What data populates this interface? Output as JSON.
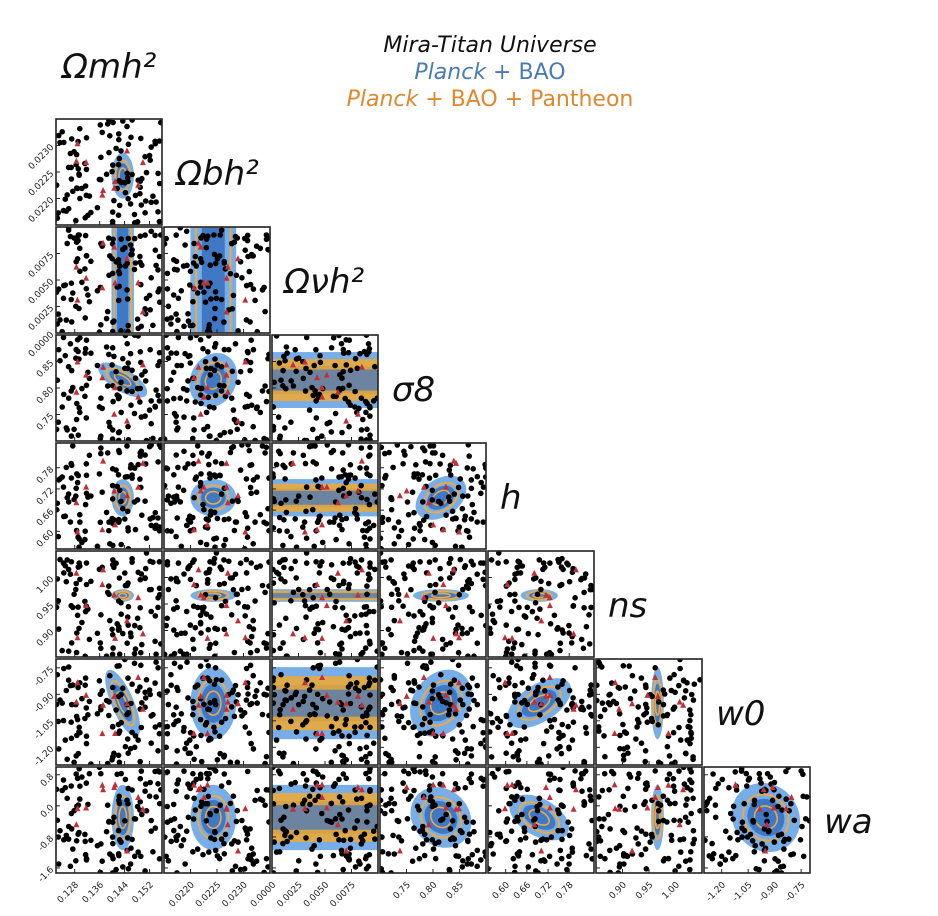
{
  "title": {
    "line1": "Mira-Titan Universe",
    "line2_italic": "Planck",
    "line2_rest": " + BAO",
    "line3_italic": "Planck",
    "line3_rest": " + BAO + Pantheon"
  },
  "colors": {
    "planck_bao_fill_outer": "#78aee8",
    "planck_bao_fill_inner": "#3f78c4",
    "pantheon_contour": "#e8a948",
    "pantheon_fill": "#f0a930",
    "design_points": "#000000",
    "fiducial_markers": "#c0303a"
  },
  "chart_data": {
    "type": "scatter",
    "description_layout": "triangle",
    "parameters": [
      {
        "key": "omch2",
        "label": "Ωmh²",
        "range": [
          0.122,
          0.156
        ],
        "ticks": [
          "0.128",
          "0.136",
          "0.144",
          "0.152"
        ]
      },
      {
        "key": "ombh2",
        "label": "Ωbh²",
        "range": [
          0.0215,
          0.0235
        ],
        "ticks": [
          "0.0220",
          "0.0225",
          "0.0230"
        ]
      },
      {
        "key": "onuh2",
        "label": "Ωνh²",
        "range": [
          0.0,
          0.01
        ],
        "ticks": [
          "0.0000",
          "0.0025",
          "0.0050",
          "0.0075"
        ]
      },
      {
        "key": "sigma8",
        "label": "σ8",
        "range": [
          0.7,
          0.9
        ],
        "ticks": [
          "0.75",
          "0.80",
          "0.85"
        ]
      },
      {
        "key": "h",
        "label": "h",
        "range": [
          0.55,
          0.85
        ],
        "ticks": [
          "0.60",
          "0.66",
          "0.72",
          "0.78"
        ]
      },
      {
        "key": "ns",
        "label": "ns",
        "range": [
          0.85,
          1.05
        ],
        "ticks": [
          "0.90",
          "0.95",
          "1.00"
        ]
      },
      {
        "key": "w0",
        "label": "w0",
        "range": [
          -1.3,
          -0.7
        ],
        "ticks": [
          "-1.20",
          "-1.05",
          "-0.90",
          "-0.75"
        ]
      },
      {
        "key": "wa",
        "label": "wa",
        "range": [
          -1.73,
          1.0
        ],
        "ticks": [
          "-1.6",
          "-0.8",
          "0.0",
          "0.8"
        ]
      }
    ],
    "row_ticks": [
      {
        "param": "ombh2",
        "ticks": [
          "0.0220",
          "0.0225",
          "0.0230"
        ]
      },
      {
        "param": "onuh2",
        "ticks": [
          "0.0000",
          "0.0025",
          "0.0050",
          "0.0075"
        ]
      },
      {
        "param": "sigma8",
        "ticks": [
          "0.75",
          "0.80",
          "0.85"
        ]
      },
      {
        "param": "h",
        "ticks": [
          "0.60",
          "0.66",
          "0.72",
          "0.78"
        ]
      },
      {
        "param": "ns",
        "ticks": [
          "0.90",
          "0.95",
          "1.00"
        ]
      },
      {
        "param": "w0",
        "ticks": [
          "-1.20",
          "-1.05",
          "-0.90",
          "-0.75"
        ]
      },
      {
        "param": "wa",
        "ticks": [
          "-1.6",
          "-0.8",
          "0.0",
          "0.8"
        ]
      }
    ],
    "posterior_centers": {
      "omch2": 0.1434,
      "ombh2": 0.02243,
      "onuh2": 0.0,
      "sigma8": 0.815,
      "h": 0.695,
      "ns": 0.966,
      "w0": -0.95,
      "wa": -0.3
    },
    "posterior_widths": {
      "omch2": 0.0015,
      "ombh2": 0.00018,
      "onuh2": 0.01,
      "sigma8": 0.022,
      "h": 0.022,
      "ns": 0.005,
      "w0": 0.085,
      "wa": 0.35
    },
    "series": [
      {
        "name": "Planck + BAO",
        "kind": "filled-contours",
        "confidence_levels": [
          "68%",
          "95%"
        ]
      },
      {
        "name": "Planck + BAO + Pantheon",
        "kind": "line-contours",
        "confidence_levels": [
          "68%",
          "95%"
        ]
      },
      {
        "kind": "scatter",
        "count": 111
      },
      {
        "kind": "triangle-markers",
        "count": 10
      }
    ],
    "grid": false,
    "legend": "top-right"
  }
}
